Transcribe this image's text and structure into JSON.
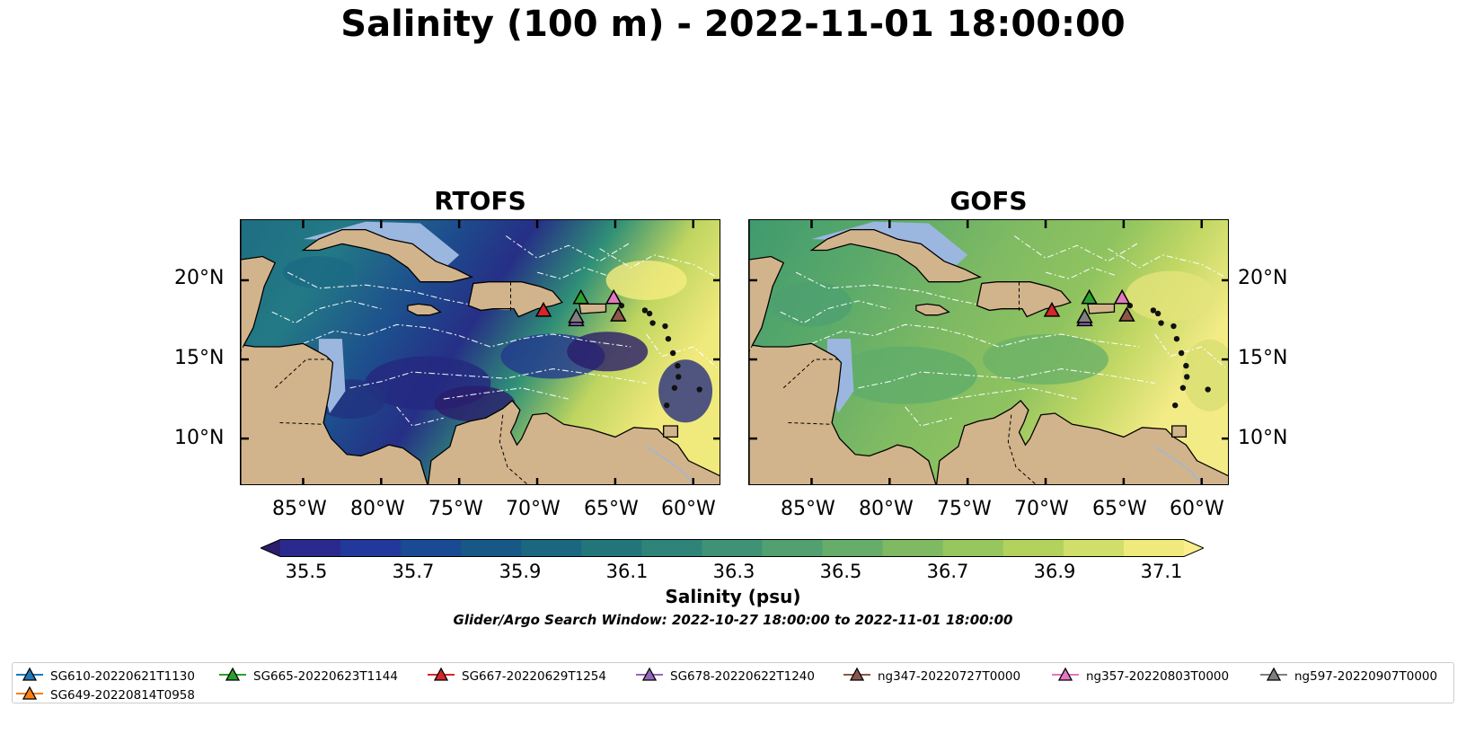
{
  "title": "Salinity (100 m) - 2022-11-01 18:00:00",
  "panels": [
    {
      "title": "RTOFS",
      "model": "rtofs"
    },
    {
      "title": "GOFS",
      "model": "gofs"
    }
  ],
  "lat_ticks": [
    "20°N",
    "15°N",
    "10°N"
  ],
  "lon_ticks": [
    "85°W",
    "80°W",
    "75°W",
    "70°W",
    "65°W",
    "60°W"
  ],
  "colorbar": {
    "label": "Salinity (psu)",
    "ticks": [
      "35.5",
      "35.7",
      "35.9",
      "36.1",
      "36.3",
      "36.5",
      "36.7",
      "36.9",
      "37.1"
    ],
    "range": [
      35.4,
      37.2
    ],
    "colors": [
      "#2b1d6b",
      "#2a2a8e",
      "#22389b",
      "#194a93",
      "#185886",
      "#1b677f",
      "#22767a",
      "#2e8478",
      "#3f9275",
      "#52a070",
      "#67ad6a",
      "#7fba63",
      "#98c65e",
      "#b3d15d",
      "#d0de6a",
      "#f0e97c",
      "#fbee8b"
    ]
  },
  "search_window": "Glider/Argo Search Window: 2022-10-27 18:00:00 to 2022-11-01 18:00:00",
  "gliders": [
    {
      "name": "SG610-20220621T1130",
      "color": "#1f77b4"
    },
    {
      "name": "SG649-20220814T0958",
      "color": "#ff7f0e"
    },
    {
      "name": "SG665-20220623T1144",
      "color": "#2ca02c"
    },
    {
      "name": "SG667-20220629T1254",
      "color": "#d62728"
    },
    {
      "name": "SG678-20220622T1240",
      "color": "#9467bd"
    },
    {
      "name": "ng347-20220727T0000",
      "color": "#8c564b"
    },
    {
      "name": "ng357-20220803T0000",
      "color": "#e377c2"
    },
    {
      "name": "ng597-20220907T0000",
      "color": "#7f7f7f"
    }
  ],
  "glider_positions": [
    {
      "name": "SG667-20220629T1254",
      "lon": -69.6,
      "lat": 18.1
    },
    {
      "name": "SG665-20220623T1144",
      "lon": -67.2,
      "lat": 18.9
    },
    {
      "name": "SG678-20220622T1240",
      "lon": -67.5,
      "lat": 17.5
    },
    {
      "name": "ng597-20220907T0000",
      "lon": -67.5,
      "lat": 17.7
    },
    {
      "name": "ng357-20220803T0000",
      "lon": -65.1,
      "lat": 18.9
    },
    {
      "name": "ng347-20220727T0000",
      "lon": -64.8,
      "lat": 17.8
    }
  ]
}
